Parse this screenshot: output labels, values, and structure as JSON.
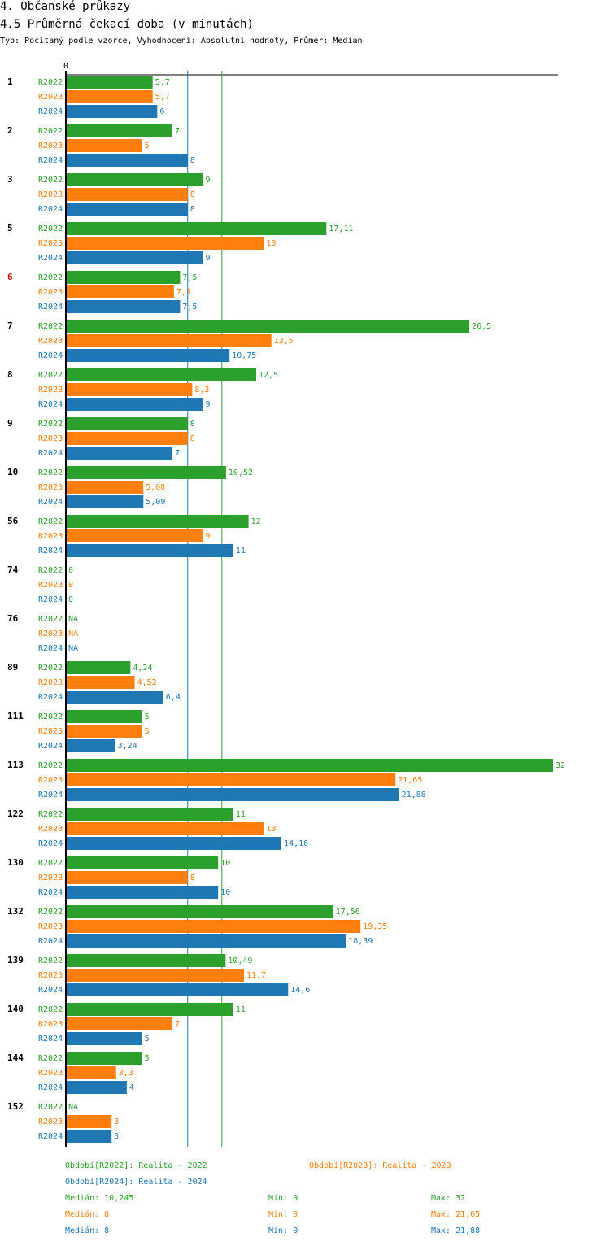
{
  "header": {
    "title": "4. Občanské průkazy",
    "subtitle": "4.5 Průměrná čekací doba (v minutách)",
    "type_line": "Typ: Počítaný podle vzorce, Vyhodnocení: Absolutní hodnoty, Průměr: Medián"
  },
  "colors": {
    "R2022": "#2ca02c",
    "R2023": "#ff7f0e",
    "R2024": "#1f77b4",
    "highlight": "#cc0000"
  },
  "chart_data": {
    "type": "bar",
    "orientation": "horizontal",
    "axis_zero_label": "0",
    "xlim": [
      0,
      32
    ],
    "reference_lines": [
      8,
      10.245
    ],
    "series_names": [
      "R2022",
      "R2023",
      "R2024"
    ],
    "groups": [
      {
        "label": "1",
        "highlight": false,
        "values": [
          5.7,
          5.7,
          6
        ],
        "labels": [
          "5,7",
          "5,7",
          "6"
        ]
      },
      {
        "label": "2",
        "highlight": false,
        "values": [
          7,
          5,
          8
        ],
        "labels": [
          "7",
          "5",
          "8"
        ]
      },
      {
        "label": "3",
        "highlight": false,
        "values": [
          9,
          8,
          8
        ],
        "labels": [
          "9",
          "8",
          "8"
        ]
      },
      {
        "label": "5",
        "highlight": false,
        "values": [
          17.11,
          13,
          9
        ],
        "labels": [
          "17,11",
          "13",
          "9"
        ]
      },
      {
        "label": "6",
        "highlight": true,
        "values": [
          7.5,
          7.1,
          7.5
        ],
        "labels": [
          "7,5",
          "7,1",
          "7,5"
        ]
      },
      {
        "label": "7",
        "highlight": false,
        "values": [
          26.5,
          13.5,
          10.75
        ],
        "labels": [
          "26,5",
          "13,5",
          "10,75"
        ]
      },
      {
        "label": "8",
        "highlight": false,
        "values": [
          12.5,
          8.3,
          9
        ],
        "labels": [
          "12,5",
          "8,3",
          "9"
        ]
      },
      {
        "label": "9",
        "highlight": false,
        "values": [
          8,
          8,
          7
        ],
        "labels": [
          "8",
          "8",
          "7"
        ]
      },
      {
        "label": "10",
        "highlight": false,
        "values": [
          10.52,
          5.08,
          5.09
        ],
        "labels": [
          "10,52",
          "5,08",
          "5,09"
        ]
      },
      {
        "label": "56",
        "highlight": false,
        "values": [
          12,
          9,
          11
        ],
        "labels": [
          "12",
          "9",
          "11"
        ]
      },
      {
        "label": "74",
        "highlight": false,
        "values": [
          0,
          0,
          0
        ],
        "labels": [
          "0",
          "0",
          "0"
        ]
      },
      {
        "label": "76",
        "highlight": false,
        "values": [
          null,
          null,
          null
        ],
        "labels": [
          "NA",
          "NA",
          "NA"
        ]
      },
      {
        "label": "89",
        "highlight": false,
        "values": [
          4.24,
          4.52,
          6.4
        ],
        "labels": [
          "4,24",
          "4,52",
          "6,4"
        ]
      },
      {
        "label": "111",
        "highlight": false,
        "values": [
          5,
          5,
          3.24
        ],
        "labels": [
          "5",
          "5",
          "3,24"
        ]
      },
      {
        "label": "113",
        "highlight": false,
        "values": [
          32,
          21.65,
          21.88
        ],
        "labels": [
          "32",
          "21,65",
          "21,88"
        ]
      },
      {
        "label": "122",
        "highlight": false,
        "values": [
          11,
          13,
          14.16
        ],
        "labels": [
          "11",
          "13",
          "14,16"
        ]
      },
      {
        "label": "130",
        "highlight": false,
        "values": [
          10,
          8,
          10
        ],
        "labels": [
          "10",
          "8",
          "10"
        ]
      },
      {
        "label": "132",
        "highlight": false,
        "values": [
          17.56,
          19.35,
          18.39
        ],
        "labels": [
          "17,56",
          "19,35",
          "18,39"
        ]
      },
      {
        "label": "139",
        "highlight": false,
        "values": [
          10.49,
          11.7,
          14.6
        ],
        "labels": [
          "10,49",
          "11,7",
          "14,6"
        ]
      },
      {
        "label": "140",
        "highlight": false,
        "values": [
          11,
          7,
          5
        ],
        "labels": [
          "11",
          "7",
          "5"
        ]
      },
      {
        "label": "144",
        "highlight": false,
        "values": [
          5,
          3.3,
          4
        ],
        "labels": [
          "5",
          "3,3",
          "4"
        ]
      },
      {
        "label": "152",
        "highlight": false,
        "values": [
          null,
          3,
          3
        ],
        "labels": [
          "NA",
          "3",
          "3"
        ]
      }
    ]
  },
  "legend": {
    "r2022": "Období[R2022]: Realita - 2022",
    "r2023": "Období[R2023]: Realita - 2023",
    "r2024": "Období[R2024]: Realita - 2024"
  },
  "stats": {
    "r2022": {
      "median": "Medián: 10,245",
      "min": "Min: 0",
      "max": "Max: 32"
    },
    "r2023": {
      "median": "Medián: 8",
      "min": "Min: 0",
      "max": "Max: 21,65"
    },
    "r2024": {
      "median": "Medián: 8",
      "min": "Min: 0",
      "max": "Max: 21,88"
    }
  }
}
